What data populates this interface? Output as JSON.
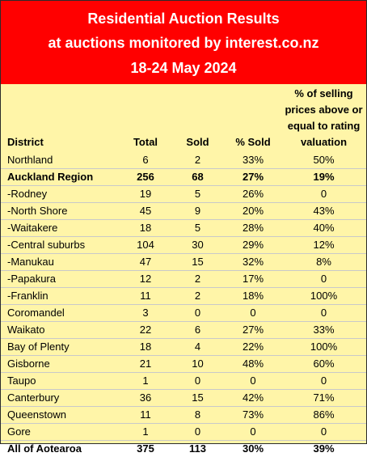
{
  "banner": {
    "line1": "Residential Auction Results",
    "line2": "at auctions monitored by interest.co.nz",
    "line3": "18-24 May 2024"
  },
  "table": {
    "headers": {
      "district": "District",
      "total": "Total",
      "sold": "Sold",
      "pct_sold": "% Sold",
      "valuation_l1": "% of selling",
      "valuation_l2": "prices above or",
      "valuation_l3": "equal to rating",
      "valuation_l4": "valuation"
    },
    "rows": [
      {
        "district": "Northland",
        "total": "6",
        "sold": "2",
        "pct": "33%",
        "val": "50%",
        "bold": false
      },
      {
        "district": "Auckland Region",
        "total": "256",
        "sold": "68",
        "pct": "27%",
        "val": "19%",
        "bold": true
      },
      {
        "district": "-Rodney",
        "total": "19",
        "sold": "5",
        "pct": "26%",
        "val": "0",
        "bold": false
      },
      {
        "district": "-North Shore",
        "total": "45",
        "sold": "9",
        "pct": "20%",
        "val": "43%",
        "bold": false
      },
      {
        "district": "-Waitakere",
        "total": "18",
        "sold": "5",
        "pct": "28%",
        "val": "40%",
        "bold": false
      },
      {
        "district": "-Central suburbs",
        "total": "104",
        "sold": "30",
        "pct": "29%",
        "val": "12%",
        "bold": false
      },
      {
        "district": "-Manukau",
        "total": "47",
        "sold": "15",
        "pct": "32%",
        "val": "8%",
        "bold": false
      },
      {
        "district": "-Papakura",
        "total": "12",
        "sold": "2",
        "pct": "17%",
        "val": "0",
        "bold": false
      },
      {
        "district": "-Franklin",
        "total": "11",
        "sold": "2",
        "pct": "18%",
        "val": "100%",
        "bold": false
      },
      {
        "district": "Coromandel",
        "total": "3",
        "sold": "0",
        "pct": "0",
        "val": "0",
        "bold": false
      },
      {
        "district": "Waikato",
        "total": "22",
        "sold": "6",
        "pct": "27%",
        "val": "33%",
        "bold": false
      },
      {
        "district": "Bay of Plenty",
        "total": "18",
        "sold": "4",
        "pct": "22%",
        "val": "100%",
        "bold": false
      },
      {
        "district": "Gisborne",
        "total": "21",
        "sold": "10",
        "pct": "48%",
        "val": "60%",
        "bold": false
      },
      {
        "district": "Taupo",
        "total": "1",
        "sold": "0",
        "pct": "0",
        "val": "0",
        "bold": false
      },
      {
        "district": "Canterbury",
        "total": "36",
        "sold": "15",
        "pct": "42%",
        "val": "71%",
        "bold": false
      },
      {
        "district": "Queenstown",
        "total": "11",
        "sold": "8",
        "pct": "73%",
        "val": "86%",
        "bold": false
      },
      {
        "district": "Gore",
        "total": "1",
        "sold": "0",
        "pct": "0",
        "val": "0",
        "bold": false
      },
      {
        "district": "All of Aotearoa",
        "total": "375",
        "sold": "113",
        "pct": "30%",
        "val": "39%",
        "bold": true
      }
    ]
  },
  "colors": {
    "banner_bg": "#ff0000",
    "banner_text": "#ffffff",
    "table_bg": "#fff5a8",
    "row_divider": "#c9c9c9"
  }
}
